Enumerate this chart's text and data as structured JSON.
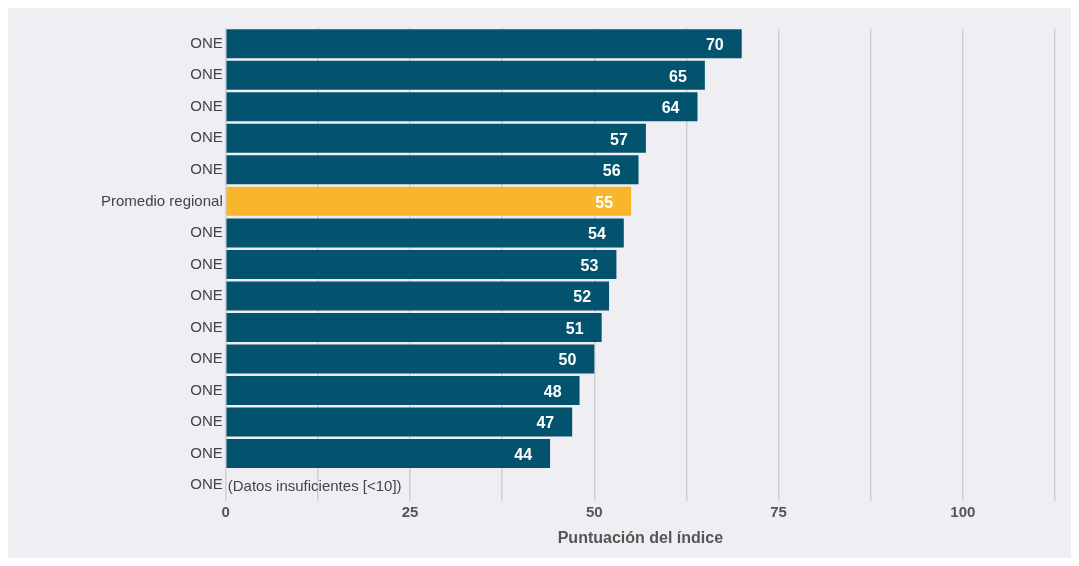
{
  "chart_data": {
    "type": "bar",
    "orientation": "horizontal",
    "xlabel": "Puntuación del índice",
    "categories": [
      "ONE",
      "ONE",
      "ONE",
      "ONE",
      "ONE",
      "Promedio regional",
      "ONE",
      "ONE",
      "ONE",
      "ONE",
      "ONE",
      "ONE",
      "ONE",
      "ONE",
      "ONE"
    ],
    "values": [
      70,
      65,
      64,
      57,
      56,
      55,
      54,
      53,
      52,
      51,
      50,
      48,
      47,
      44,
      null
    ],
    "colors": [
      "#03536f",
      "#03536f",
      "#03536f",
      "#03536f",
      "#03536f",
      "#f8b62d",
      "#03536f",
      "#03536f",
      "#03536f",
      "#03536f",
      "#03536f",
      "#03536f",
      "#03536f",
      "#03536f",
      "#03536f"
    ],
    "value_labels": [
      "70",
      "65",
      "64",
      "57",
      "56",
      "55",
      "54",
      "53",
      "52",
      "51",
      "50",
      "48",
      "47",
      "44",
      "(Datos insuficientes [<10])"
    ],
    "xlim": [
      0,
      112.5
    ],
    "xticks": [
      0,
      {
        "value": 12.5,
        "label": null
      },
      25,
      {
        "value": 37.5,
        "label": null
      },
      50,
      {
        "value": 62.5,
        "label": null
      },
      75,
      {
        "value": 87.5,
        "label": null
      },
      100,
      {
        "value": 112.5,
        "label": null
      }
    ],
    "grid": "x",
    "legend": false
  }
}
